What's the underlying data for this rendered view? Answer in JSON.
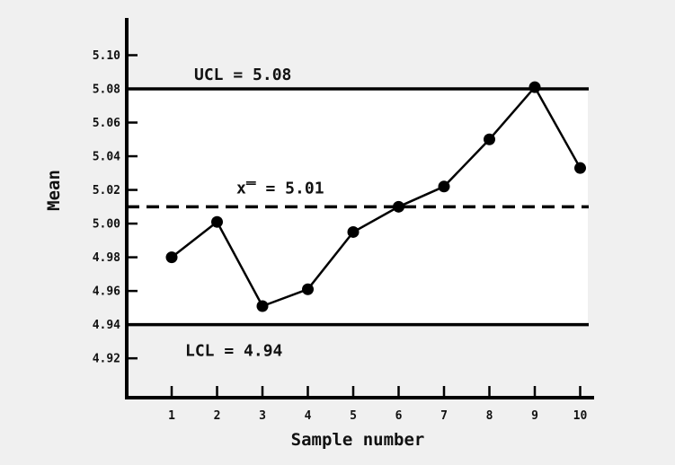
{
  "chart_data": {
    "type": "line",
    "title": "",
    "xlabel": "Sample number",
    "ylabel": "Mean",
    "x": [
      1,
      2,
      3,
      4,
      5,
      6,
      7,
      8,
      9,
      10
    ],
    "series": [
      {
        "values": [
          4.98,
          5.001,
          4.951,
          4.961,
          4.995,
          5.01,
          5.022,
          5.05,
          5.081,
          5.033
        ]
      }
    ],
    "ylim": [
      4.9,
      5.12
    ],
    "yticks": [
      4.92,
      4.94,
      4.96,
      4.98,
      5.0,
      5.02,
      5.04,
      5.06,
      5.08,
      5.1
    ],
    "ytick_labels": [
      "4.92",
      "4.94",
      "4.96",
      "4.98",
      "5.00",
      "5.02",
      "5.04",
      "5.06",
      "5.08",
      "5.10"
    ],
    "xticks": [
      1,
      2,
      3,
      4,
      5,
      6,
      7,
      8,
      9,
      10
    ],
    "xtick_labels": [
      "1",
      "2",
      "3",
      "4",
      "5",
      "6",
      "7",
      "8",
      "9",
      "10"
    ],
    "reference_lines": [
      {
        "name": "ucl",
        "value": 5.08,
        "label": "UCL = 5.08",
        "style": "solid"
      },
      {
        "name": "center",
        "value": 5.01,
        "label": "x̿ = 5.01",
        "style": "dashed"
      },
      {
        "name": "lcl",
        "value": 4.94,
        "label": "LCL = 4.94",
        "style": "solid"
      }
    ],
    "control_band_color": "#ffffff",
    "line_color": "#000000",
    "background_color": "#f0f0f0",
    "grid": false,
    "legend": "none"
  }
}
